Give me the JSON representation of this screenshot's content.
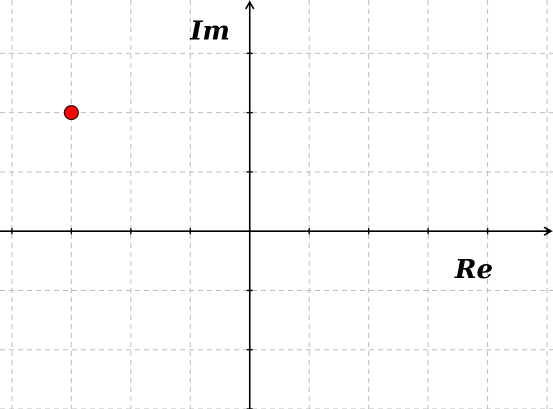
{
  "chart_data": {
    "type": "scatter",
    "title": "",
    "xlabel": "Re",
    "ylabel": "Im",
    "xlim": [
      -4.2,
      5.1
    ],
    "ylim": [
      -3.0,
      3.9
    ],
    "xtick_step": 1,
    "ytick_step": 1,
    "grid": true,
    "axes_style": "cartesian-through-origin-with-arrows",
    "tick_labels": false,
    "series": [
      {
        "marker": "circle",
        "color": "#ff0000",
        "points": [
          {
            "x": -3,
            "y": 2
          }
        ]
      }
    ]
  }
}
